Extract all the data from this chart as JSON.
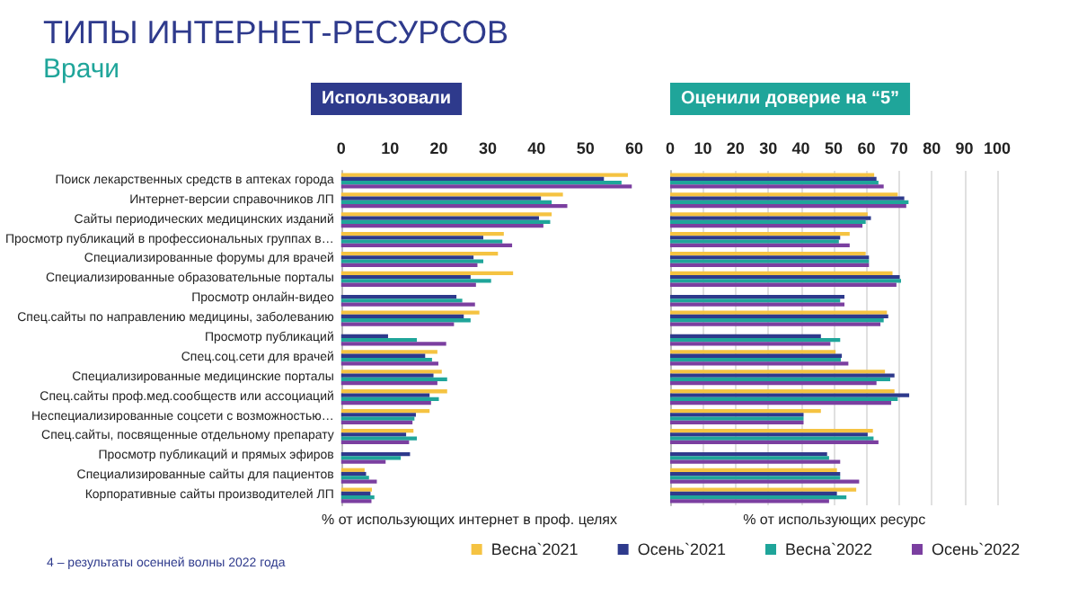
{
  "chart_data": [
    {
      "type": "other",
      "title": "ТИПЫ ИНТЕРНЕТ-РЕСУРСОВ",
      "subtitle": "Врачи",
      "annotations": [
        "4 – результаты осенней волны 2022 года"
      ]
    },
    {
      "type": "bar",
      "orientation": "horizontal",
      "title": "Использовали",
      "xlabel": "% от использующих интернет в проф. целях",
      "categories": [
        "Поиск лекарственных средств в аптеках города",
        "Интернет-версии справочников ЛП",
        "Сайты периодических медицинских изданий",
        "Просмотр публикаций в профессиональных группах в…",
        "Специализированные форумы для врачей",
        "Специализированные образовательные порталы",
        "Просмотр онлайн-видео",
        "Спец.сайты по направлению медицины, заболеванию",
        "Просмотр публикаций",
        "Спец.соц.сети для врачей",
        "Специализированные медицинские порталы",
        "Спец.сайты проф.мед.сообществ или ассоциаций",
        "Неспециализированные соцсети с возможностью…",
        "Спец.сайты, посвященные отдельному препарату",
        "Просмотр публикаций и прямых эфиров",
        "Специализированные сайты для пациентов",
        "Корпоративные сайты производителей ЛП"
      ],
      "xlim": [
        0,
        60
      ],
      "xticks": [
        0,
        10,
        20,
        30,
        40,
        50,
        60
      ],
      "grid": false,
      "legend": false,
      "series": [
        {
          "color": "#f5c342",
          "values": [
            58.7,
            45.4,
            43.1,
            33.3,
            32.1,
            35.2,
            null,
            28.3,
            null,
            19.7,
            20.6,
            21.7,
            18.1,
            14.8,
            null,
            4.8,
            6.3
          ]
        },
        {
          "color": "#2e3a8c",
          "values": [
            53.8,
            40.9,
            40.5,
            29.1,
            27.1,
            26.5,
            23.6,
            25.1,
            9.6,
            17.2,
            18.9,
            18.1,
            15.3,
            13.3,
            14.1,
            5.1,
            6.0
          ]
        },
        {
          "color": "#1fa59a",
          "values": [
            57.4,
            43.1,
            42.8,
            33.0,
            29.1,
            30.7,
            24.8,
            26.5,
            15.5,
            18.6,
            21.7,
            20.0,
            15.0,
            15.5,
            12.2,
            5.7,
            6.8
          ]
        },
        {
          "color": "#7b3fa0",
          "values": [
            59.5,
            46.3,
            41.4,
            35.0,
            27.9,
            27.6,
            27.4,
            23.1,
            21.5,
            19.9,
            19.7,
            18.4,
            14.6,
            13.9,
            9.1,
            7.3,
            6.2
          ]
        }
      ]
    },
    {
      "type": "bar",
      "orientation": "horizontal",
      "title": "Оценили доверие на “5”",
      "xlabel": "% от использующих ресурс",
      "categories": [
        null,
        null,
        null,
        null,
        null,
        null,
        null,
        null,
        null,
        null,
        null,
        null,
        null,
        null,
        null,
        null,
        null
      ],
      "xlim": [
        0,
        100
      ],
      "xticks": [
        0,
        10,
        20,
        30,
        40,
        50,
        60,
        70,
        80,
        90,
        100
      ],
      "grid": "x",
      "legend": "bottom",
      "series": [
        {
          "name": "Весна`2021",
          "color": "#f5c342",
          "values": [
            62.4,
            69.6,
            60.4,
            54.9,
            59.8,
            68.0,
            null,
            66.3,
            null,
            50.6,
            65.7,
            68.6,
            46.1,
            62.0,
            null,
            51.0,
            56.9
          ]
        },
        {
          "name": "Осень`2021",
          "color": "#2e3a8c",
          "values": [
            63.1,
            71.6,
            61.4,
            52.0,
            60.8,
            70.2,
            53.3,
            66.7,
            46.1,
            52.5,
            68.6,
            73.1,
            40.8,
            60.4,
            48.0,
            52.0,
            51.0
          ]
        },
        {
          "name": "Весна`2022",
          "color": "#1fa59a",
          "values": [
            63.7,
            72.9,
            59.8,
            51.6,
            60.8,
            70.6,
            52.0,
            65.3,
            52.0,
            52.2,
            67.3,
            69.6,
            40.8,
            62.2,
            48.6,
            52.0,
            53.9
          ]
        },
        {
          "name": "Осень`2022",
          "color": "#7b3fa0",
          "values": [
            65.3,
            72.2,
            58.8,
            54.9,
            60.8,
            69.2,
            53.3,
            64.3,
            49.0,
            54.5,
            63.1,
            67.6,
            40.8,
            63.7,
            52.0,
            57.8,
            48.6
          ]
        }
      ]
    }
  ]
}
